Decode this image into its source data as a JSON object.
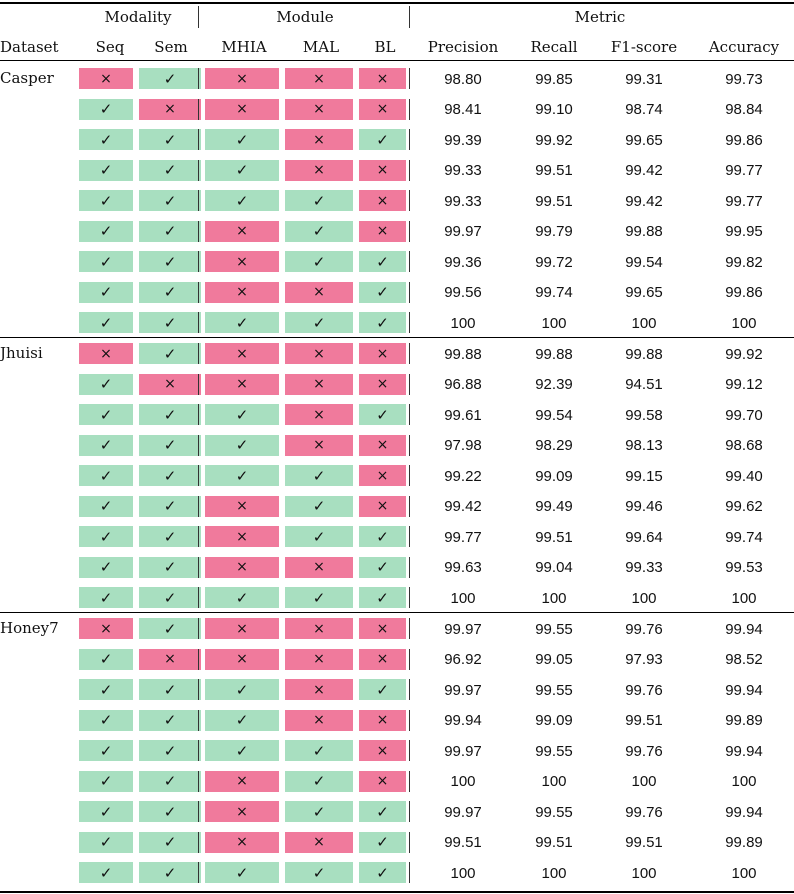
{
  "header": {
    "group_modality": "Modality",
    "group_module": "Module",
    "group_metric": "Metric",
    "columns": [
      "Dataset",
      "Seq",
      "Sem",
      "MHIA",
      "MAL",
      "BL",
      "Precision",
      "Recall",
      "F1-score",
      "Accuracy"
    ]
  },
  "symbols": {
    "yes": "✓",
    "no": "×"
  },
  "colors": {
    "yes_fill": "#a8dfc0",
    "no_fill": "#f07a9c"
  },
  "groups": [
    {
      "dataset": "Casper",
      "rows": [
        {
          "flags": [
            0,
            1,
            0,
            0,
            0
          ],
          "metrics": [
            "98.80",
            "99.85",
            "99.31",
            "99.73"
          ]
        },
        {
          "flags": [
            1,
            0,
            0,
            0,
            0
          ],
          "metrics": [
            "98.41",
            "99.10",
            "98.74",
            "98.84"
          ]
        },
        {
          "flags": [
            1,
            1,
            1,
            0,
            1
          ],
          "metrics": [
            "99.39",
            "99.92",
            "99.65",
            "99.86"
          ]
        },
        {
          "flags": [
            1,
            1,
            1,
            0,
            0
          ],
          "metrics": [
            "99.33",
            "99.51",
            "99.42",
            "99.77"
          ]
        },
        {
          "flags": [
            1,
            1,
            1,
            1,
            0
          ],
          "metrics": [
            "99.33",
            "99.51",
            "99.42",
            "99.77"
          ]
        },
        {
          "flags": [
            1,
            1,
            0,
            1,
            0
          ],
          "metrics": [
            "99.97",
            "99.79",
            "99.88",
            "99.95"
          ]
        },
        {
          "flags": [
            1,
            1,
            0,
            1,
            1
          ],
          "metrics": [
            "99.36",
            "99.72",
            "99.54",
            "99.82"
          ]
        },
        {
          "flags": [
            1,
            1,
            0,
            0,
            1
          ],
          "metrics": [
            "99.56",
            "99.74",
            "99.65",
            "99.86"
          ]
        },
        {
          "flags": [
            1,
            1,
            1,
            1,
            1
          ],
          "metrics": [
            "100",
            "100",
            "100",
            "100"
          ]
        }
      ]
    },
    {
      "dataset": "Jhuisi",
      "rows": [
        {
          "flags": [
            0,
            1,
            0,
            0,
            0
          ],
          "metrics": [
            "99.88",
            "99.88",
            "99.88",
            "99.92"
          ]
        },
        {
          "flags": [
            1,
            0,
            0,
            0,
            0
          ],
          "metrics": [
            "96.88",
            "92.39",
            "94.51",
            "99.12"
          ]
        },
        {
          "flags": [
            1,
            1,
            1,
            0,
            1
          ],
          "metrics": [
            "99.61",
            "99.54",
            "99.58",
            "99.70"
          ]
        },
        {
          "flags": [
            1,
            1,
            1,
            0,
            0
          ],
          "metrics": [
            "97.98",
            "98.29",
            "98.13",
            "98.68"
          ]
        },
        {
          "flags": [
            1,
            1,
            1,
            1,
            0
          ],
          "metrics": [
            "99.22",
            "99.09",
            "99.15",
            "99.40"
          ]
        },
        {
          "flags": [
            1,
            1,
            0,
            1,
            0
          ],
          "metrics": [
            "99.42",
            "99.49",
            "99.46",
            "99.62"
          ]
        },
        {
          "flags": [
            1,
            1,
            0,
            1,
            1
          ],
          "metrics": [
            "99.77",
            "99.51",
            "99.64",
            "99.74"
          ]
        },
        {
          "flags": [
            1,
            1,
            0,
            0,
            1
          ],
          "metrics": [
            "99.63",
            "99.04",
            "99.33",
            "99.53"
          ]
        },
        {
          "flags": [
            1,
            1,
            1,
            1,
            1
          ],
          "metrics": [
            "100",
            "100",
            "100",
            "100"
          ]
        }
      ]
    },
    {
      "dataset": "Honey7",
      "rows": [
        {
          "flags": [
            0,
            1,
            0,
            0,
            0
          ],
          "metrics": [
            "99.97",
            "99.55",
            "99.76",
            "99.94"
          ]
        },
        {
          "flags": [
            1,
            0,
            0,
            0,
            0
          ],
          "metrics": [
            "96.92",
            "99.05",
            "97.93",
            "98.52"
          ]
        },
        {
          "flags": [
            1,
            1,
            1,
            0,
            1
          ],
          "metrics": [
            "99.97",
            "99.55",
            "99.76",
            "99.94"
          ]
        },
        {
          "flags": [
            1,
            1,
            1,
            0,
            0
          ],
          "metrics": [
            "99.94",
            "99.09",
            "99.51",
            "99.89"
          ]
        },
        {
          "flags": [
            1,
            1,
            1,
            1,
            0
          ],
          "metrics": [
            "99.97",
            "99.55",
            "99.76",
            "99.94"
          ]
        },
        {
          "flags": [
            1,
            1,
            0,
            1,
            0
          ],
          "metrics": [
            "100",
            "100",
            "100",
            "100"
          ]
        },
        {
          "flags": [
            1,
            1,
            0,
            1,
            1
          ],
          "metrics": [
            "99.97",
            "99.55",
            "99.76",
            "99.94"
          ]
        },
        {
          "flags": [
            1,
            1,
            0,
            0,
            1
          ],
          "metrics": [
            "99.51",
            "99.51",
            "99.51",
            "99.89"
          ]
        },
        {
          "flags": [
            1,
            1,
            1,
            1,
            1
          ],
          "metrics": [
            "100",
            "100",
            "100",
            "100"
          ]
        }
      ]
    }
  ]
}
